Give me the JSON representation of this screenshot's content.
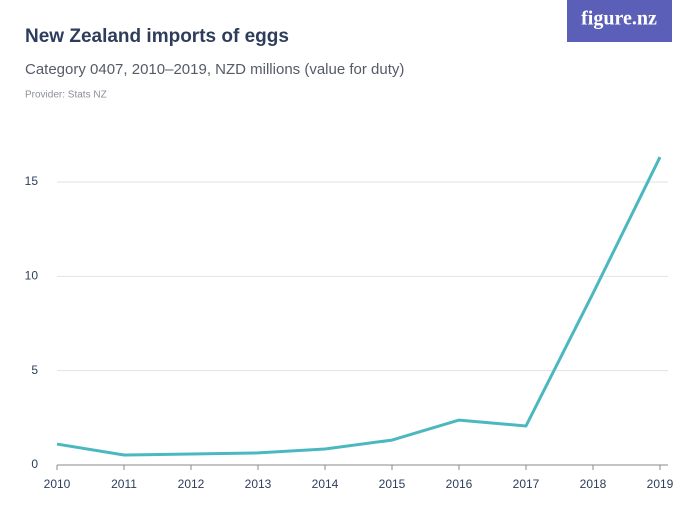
{
  "logo": "figure.nz",
  "chart_data": {
    "type": "line",
    "title": "New Zealand imports of eggs",
    "subtitle": "Category 0407, 2010–2019, NZD millions (value for duty)",
    "source": "Provider: Stats NZ",
    "categories": [
      "2010",
      "2011",
      "2012",
      "2013",
      "2014",
      "2015",
      "2016",
      "2017",
      "2018",
      "2019"
    ],
    "series": [
      {
        "color": "#4bb8c0",
        "values": [
          1.11,
          0.53,
          0.58,
          0.64,
          0.85,
          1.32,
          2.38,
          2.07,
          9.1,
          16.32
        ]
      }
    ],
    "ylim": [
      0,
      17.5
    ],
    "yticks": [
      0,
      5,
      10,
      15
    ],
    "grid": true
  }
}
